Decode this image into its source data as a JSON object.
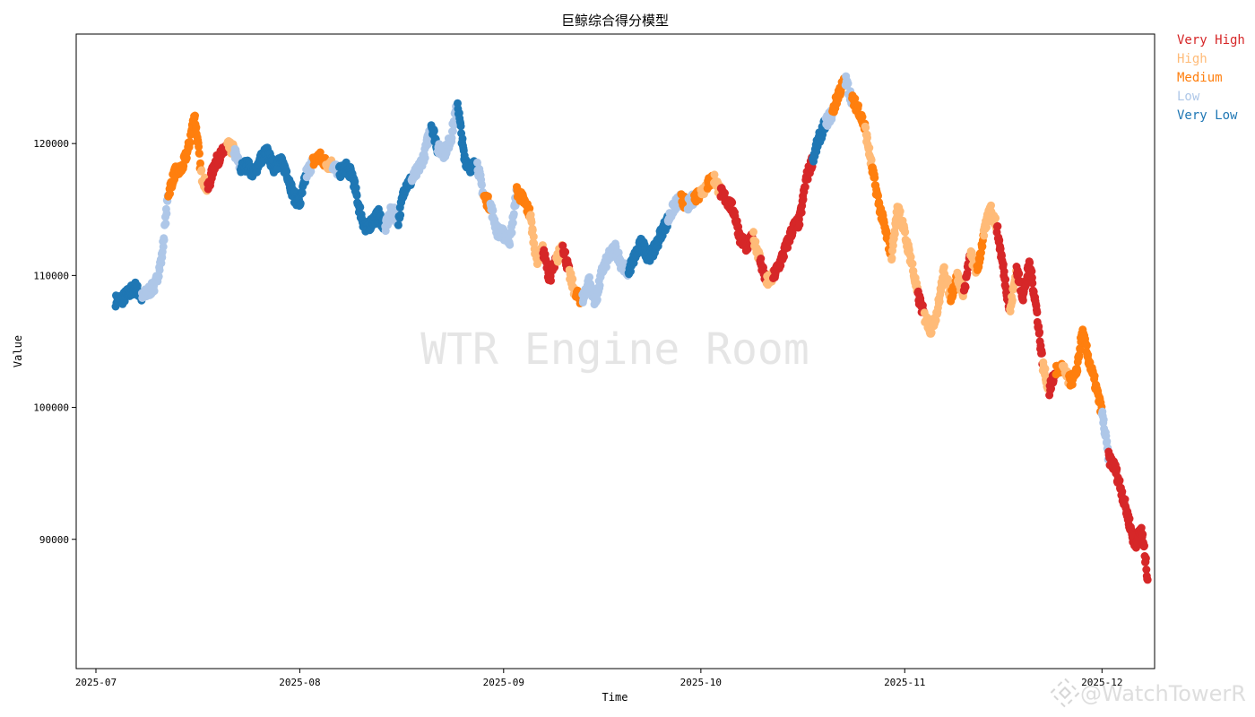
{
  "chart_data": {
    "type": "scatter",
    "title": "巨鲸综合得分模型",
    "xlabel": "Time",
    "ylabel": "Value",
    "xlim": [
      "2025-06-28",
      "2025-12-09"
    ],
    "ylim": [
      80200,
      128300
    ],
    "x_ticks": [
      "2025-07",
      "2025-08",
      "2025-09",
      "2025-10",
      "2025-11",
      "2025-12"
    ],
    "y_ticks": [
      90000,
      100000,
      110000,
      120000
    ],
    "grid": false,
    "legend_position": "outside-top-right",
    "categories": [
      {
        "name": "Very High",
        "color": "#d62728"
      },
      {
        "name": "High",
        "color": "#ffbb78"
      },
      {
        "name": "Medium",
        "color": "#ff7f0e"
      },
      {
        "name": "Low",
        "color": "#aec7e8"
      },
      {
        "name": "Very Low",
        "color": "#1f77b4"
      }
    ],
    "points": [
      [
        "2025-07-04",
        108100,
        4
      ],
      [
        "2025-07-05",
        108200,
        4
      ],
      [
        "2025-07-06",
        108700,
        4
      ],
      [
        "2025-07-07",
        109100,
        4
      ],
      [
        "2025-07-08",
        108300,
        3
      ],
      [
        "2025-07-09",
        108800,
        3
      ],
      [
        "2025-07-10",
        109200,
        3
      ],
      [
        "2025-07-11",
        111300,
        3
      ],
      [
        "2025-07-12",
        116200,
        2
      ],
      [
        "2025-07-13",
        117800,
        2
      ],
      [
        "2025-07-14",
        118000,
        2
      ],
      [
        "2025-07-15",
        119500,
        2
      ],
      [
        "2025-07-16",
        122200,
        2
      ],
      [
        "2025-07-17",
        117700,
        1
      ],
      [
        "2025-07-18",
        116500,
        0
      ],
      [
        "2025-07-19",
        118400,
        0
      ],
      [
        "2025-07-20",
        119100,
        0
      ],
      [
        "2025-07-21",
        119800,
        1
      ],
      [
        "2025-07-22",
        119500,
        3
      ],
      [
        "2025-07-23",
        118100,
        4
      ],
      [
        "2025-07-24",
        118400,
        4
      ],
      [
        "2025-07-25",
        117700,
        4
      ],
      [
        "2025-07-26",
        118800,
        4
      ],
      [
        "2025-07-27",
        119400,
        4
      ],
      [
        "2025-07-28",
        118200,
        4
      ],
      [
        "2025-07-29",
        118700,
        4
      ],
      [
        "2025-07-30",
        117900,
        4
      ],
      [
        "2025-07-31",
        116100,
        4
      ],
      [
        "2025-08-01",
        115400,
        4
      ],
      [
        "2025-08-02",
        117700,
        3
      ],
      [
        "2025-08-03",
        118600,
        2
      ],
      [
        "2025-08-04",
        119000,
        2
      ],
      [
        "2025-08-05",
        118500,
        1
      ],
      [
        "2025-08-06",
        118400,
        3
      ],
      [
        "2025-08-07",
        117800,
        4
      ],
      [
        "2025-08-08",
        118200,
        4
      ],
      [
        "2025-08-09",
        117600,
        4
      ],
      [
        "2025-08-10",
        115200,
        4
      ],
      [
        "2025-08-11",
        113400,
        4
      ],
      [
        "2025-08-12",
        114100,
        4
      ],
      [
        "2025-08-13",
        114600,
        4
      ],
      [
        "2025-08-14",
        113600,
        3
      ],
      [
        "2025-08-15",
        115000,
        3
      ],
      [
        "2025-08-16",
        114200,
        4
      ],
      [
        "2025-08-17",
        116800,
        4
      ],
      [
        "2025-08-18",
        117200,
        3
      ],
      [
        "2025-08-19",
        118000,
        3
      ],
      [
        "2025-08-20",
        119200,
        3
      ],
      [
        "2025-08-21",
        121500,
        4
      ],
      [
        "2025-08-22",
        119600,
        3
      ],
      [
        "2025-08-23",
        119300,
        3
      ],
      [
        "2025-08-24",
        120400,
        3
      ],
      [
        "2025-08-25",
        123100,
        4
      ],
      [
        "2025-08-26",
        118900,
        4
      ],
      [
        "2025-08-27",
        118200,
        4
      ],
      [
        "2025-08-28",
        118400,
        3
      ],
      [
        "2025-08-29",
        116000,
        2
      ],
      [
        "2025-08-30",
        115300,
        3
      ],
      [
        "2025-08-31",
        113400,
        3
      ],
      [
        "2025-09-01",
        113100,
        3
      ],
      [
        "2025-09-02",
        112700,
        3
      ],
      [
        "2025-09-03",
        116400,
        2
      ],
      [
        "2025-09-04",
        115700,
        2
      ],
      [
        "2025-09-05",
        114700,
        1
      ],
      [
        "2025-09-06",
        111200,
        1
      ],
      [
        "2025-09-07",
        111900,
        0
      ],
      [
        "2025-09-08",
        109800,
        0
      ],
      [
        "2025-09-09",
        111100,
        1
      ],
      [
        "2025-09-10",
        112300,
        0
      ],
      [
        "2025-09-11",
        110100,
        1
      ],
      [
        "2025-09-12",
        108500,
        2
      ],
      [
        "2025-09-13",
        108200,
        3
      ],
      [
        "2025-09-14",
        109600,
        3
      ],
      [
        "2025-09-15",
        107900,
        3
      ],
      [
        "2025-09-16",
        110400,
        3
      ],
      [
        "2025-09-17",
        111400,
        3
      ],
      [
        "2025-09-18",
        112100,
        3
      ],
      [
        "2025-09-19",
        110700,
        3
      ],
      [
        "2025-09-20",
        110300,
        4
      ],
      [
        "2025-09-21",
        111500,
        4
      ],
      [
        "2025-09-22",
        112500,
        4
      ],
      [
        "2025-09-23",
        111400,
        4
      ],
      [
        "2025-09-24",
        112000,
        4
      ],
      [
        "2025-09-25",
        113300,
        4
      ],
      [
        "2025-09-26",
        114200,
        3
      ],
      [
        "2025-09-27",
        115300,
        3
      ],
      [
        "2025-09-28",
        115800,
        2
      ],
      [
        "2025-09-29",
        115300,
        3
      ],
      [
        "2025-09-30",
        115900,
        2
      ],
      [
        "2025-10-01",
        116300,
        1
      ],
      [
        "2025-10-02",
        116900,
        2
      ],
      [
        "2025-10-03",
        117400,
        1
      ],
      [
        "2025-10-04",
        116300,
        0
      ],
      [
        "2025-10-05",
        115700,
        0
      ],
      [
        "2025-10-06",
        114900,
        0
      ],
      [
        "2025-10-07",
        112800,
        0
      ],
      [
        "2025-10-08",
        112200,
        0
      ],
      [
        "2025-10-09",
        112900,
        1
      ],
      [
        "2025-10-10",
        111200,
        0
      ],
      [
        "2025-10-11",
        109500,
        1
      ],
      [
        "2025-10-12",
        109900,
        0
      ],
      [
        "2025-10-13",
        110900,
        0
      ],
      [
        "2025-10-14",
        112200,
        0
      ],
      [
        "2025-10-15",
        113600,
        0
      ],
      [
        "2025-10-16",
        114100,
        0
      ],
      [
        "2025-10-17",
        117300,
        0
      ],
      [
        "2025-10-18",
        118800,
        4
      ],
      [
        "2025-10-19",
        120400,
        4
      ],
      [
        "2025-10-20",
        121600,
        3
      ],
      [
        "2025-10-21",
        122300,
        2
      ],
      [
        "2025-10-22",
        123900,
        2
      ],
      [
        "2025-10-23",
        124800,
        3
      ],
      [
        "2025-10-24",
        123300,
        2
      ],
      [
        "2025-10-25",
        122600,
        2
      ],
      [
        "2025-10-26",
        121100,
        1
      ],
      [
        "2025-10-27",
        118200,
        2
      ],
      [
        "2025-10-28",
        115600,
        2
      ],
      [
        "2025-10-29",
        113500,
        2
      ],
      [
        "2025-10-30",
        111500,
        1
      ],
      [
        "2025-10-31",
        115400,
        1
      ],
      [
        "2025-11-01",
        113100,
        1
      ],
      [
        "2025-11-02",
        111100,
        1
      ],
      [
        "2025-11-03",
        108500,
        0
      ],
      [
        "2025-11-04",
        106900,
        1
      ],
      [
        "2025-11-05",
        105900,
        1
      ],
      [
        "2025-11-06",
        107400,
        1
      ],
      [
        "2025-11-07",
        110500,
        1
      ],
      [
        "2025-11-08",
        108400,
        2
      ],
      [
        "2025-11-09",
        109900,
        1
      ],
      [
        "2025-11-10",
        108700,
        0
      ],
      [
        "2025-11-11",
        111600,
        1
      ],
      [
        "2025-11-12",
        110300,
        2
      ],
      [
        "2025-11-13",
        113000,
        1
      ],
      [
        "2025-11-14",
        115200,
        1
      ],
      [
        "2025-11-15",
        113700,
        0
      ],
      [
        "2025-11-16",
        110500,
        0
      ],
      [
        "2025-11-17",
        107200,
        1
      ],
      [
        "2025-11-18",
        110500,
        0
      ],
      [
        "2025-11-19",
        108400,
        0
      ],
      [
        "2025-11-20",
        110900,
        0
      ],
      [
        "2025-11-21",
        107600,
        0
      ],
      [
        "2025-11-22",
        103200,
        1
      ],
      [
        "2025-11-23",
        101300,
        0
      ],
      [
        "2025-11-24",
        102800,
        2
      ],
      [
        "2025-11-25",
        103000,
        1
      ],
      [
        "2025-11-26",
        102000,
        2
      ],
      [
        "2025-11-27",
        102300,
        2
      ],
      [
        "2025-11-28",
        105700,
        2
      ],
      [
        "2025-11-29",
        103600,
        2
      ],
      [
        "2025-11-30",
        101700,
        2
      ],
      [
        "2025-12-01",
        99600,
        3
      ],
      [
        "2025-12-02",
        96200,
        0
      ],
      [
        "2025-12-03",
        95400,
        0
      ],
      [
        "2025-12-04",
        93600,
        0
      ],
      [
        "2025-12-05",
        91600,
        0
      ],
      [
        "2025-12-06",
        89500,
        0
      ],
      [
        "2025-12-07",
        90800,
        0
      ],
      [
        "2025-12-08",
        86900,
        0
      ]
    ]
  },
  "legend": {
    "very_high": "Very High",
    "high": "High",
    "medium": "Medium",
    "low": "Low",
    "very_low": "Very Low"
  },
  "watermark": {
    "center": "WTR Engine Room",
    "corner": "@WatchTowerR"
  }
}
